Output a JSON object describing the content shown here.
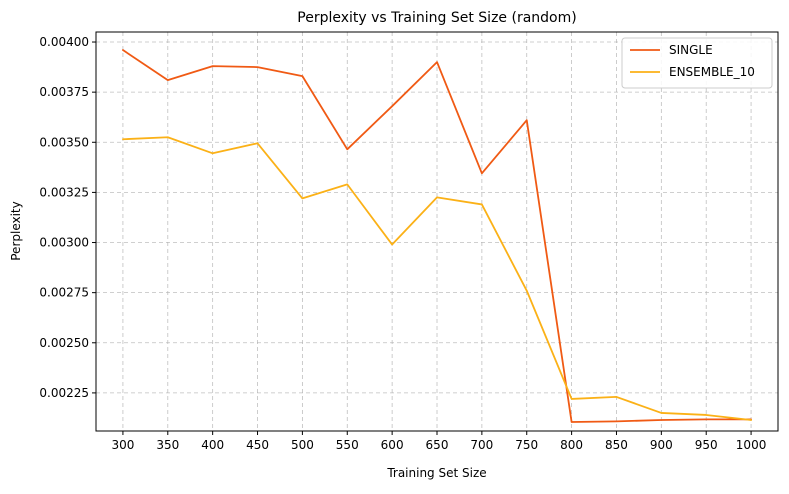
{
  "chart_data": {
    "type": "line",
    "title": "Perplexity vs Training Set Size (random)",
    "xlabel": "Training Set Size",
    "ylabel": "Perplexity",
    "x": [
      300,
      350,
      400,
      450,
      500,
      550,
      600,
      650,
      700,
      750,
      800,
      850,
      900,
      950,
      1000
    ],
    "x_ticks": [
      300,
      350,
      400,
      450,
      500,
      550,
      600,
      650,
      700,
      750,
      800,
      850,
      900,
      950,
      1000
    ],
    "x_tick_labels": [
      "300",
      "350",
      "400",
      "450",
      "500",
      "550",
      "600",
      "650",
      "700",
      "750",
      "800",
      "850",
      "900",
      "950",
      "1000"
    ],
    "xlim": [
      270,
      1030
    ],
    "y_ticks": [
      0.00225,
      0.0025,
      0.00275,
      0.003,
      0.00325,
      0.0035,
      0.00375,
      0.004
    ],
    "y_tick_labels": [
      "0.00225",
      "0.00250",
      "0.00275",
      "0.00300",
      "0.00325",
      "0.00350",
      "0.00375",
      "0.00400"
    ],
    "ylim": [
      0.00206,
      0.00405
    ],
    "grid": true,
    "legend_position": "top-right",
    "series": [
      {
        "name": "SINGLE",
        "color": "#f05a14",
        "values": [
          0.00396,
          0.00381,
          0.00388,
          0.003875,
          0.00383,
          0.003465,
          0.00368,
          0.0039,
          0.003345,
          0.00361,
          0.002105,
          0.002108,
          0.002115,
          0.002118,
          0.002118
        ]
      },
      {
        "name": "ENSEMBLE_10",
        "color": "#fbb117",
        "values": [
          0.003515,
          0.003525,
          0.003445,
          0.003495,
          0.00322,
          0.00329,
          0.00299,
          0.003225,
          0.00319,
          0.00276,
          0.00222,
          0.00223,
          0.00215,
          0.00214,
          0.002115
        ]
      }
    ]
  }
}
